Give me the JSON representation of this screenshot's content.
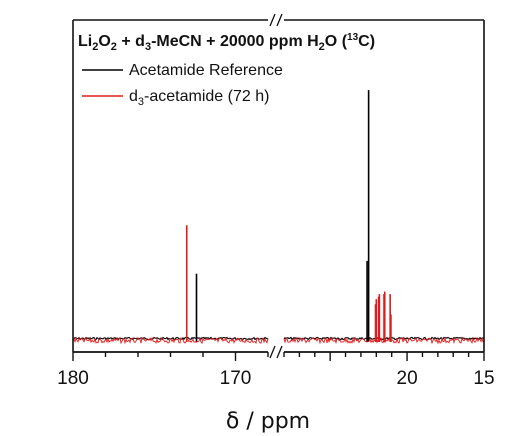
{
  "chart_data": {
    "type": "line",
    "title": {
      "parts": [
        "Li",
        "2",
        "O",
        "2",
        " + d",
        "3",
        "-MeCN + 20000 ppm H",
        "2",
        "O (",
        "13",
        "C)"
      ]
    },
    "xlabel": "δ / ppm",
    "ylabel": "",
    "axis_break": true,
    "x_reversed": true,
    "x_segments": [
      {
        "range": [
          180,
          168
        ],
        "ticks": [
          180,
          170
        ],
        "tick_labels": [
          "180",
          "170"
        ]
      },
      {
        "range": [
          28,
          15
        ],
        "ticks": [
          20,
          15
        ],
        "tick_labels": [
          "20",
          "15"
        ]
      }
    ],
    "legend_position": "top-left",
    "series": [
      {
        "name": "Acetamide Reference",
        "display_name": "Acetamide Reference",
        "color": "#000000",
        "peaks": [
          {
            "x": 172.4,
            "height": 0.26
          },
          {
            "x": 22.5,
            "height": 0.98
          },
          {
            "x": 22.6,
            "height": 0.31
          }
        ]
      },
      {
        "name": "d3-acetamide (72 h)",
        "display_name": {
          "parts": [
            "d",
            "3",
            "-acetamide (72 h)"
          ]
        },
        "color": "#e01b1b",
        "peaks": [
          {
            "x": 173.0,
            "height": 0.45
          },
          {
            "x": 21.05,
            "height": 0.1
          },
          {
            "x": 21.1,
            "height": 0.18
          },
          {
            "x": 21.45,
            "height": 0.19
          },
          {
            "x": 21.5,
            "height": 0.18
          },
          {
            "x": 21.8,
            "height": 0.18
          },
          {
            "x": 21.85,
            "height": 0.17
          },
          {
            "x": 22.0,
            "height": 0.16
          },
          {
            "x": 22.05,
            "height": 0.14
          }
        ]
      }
    ]
  }
}
